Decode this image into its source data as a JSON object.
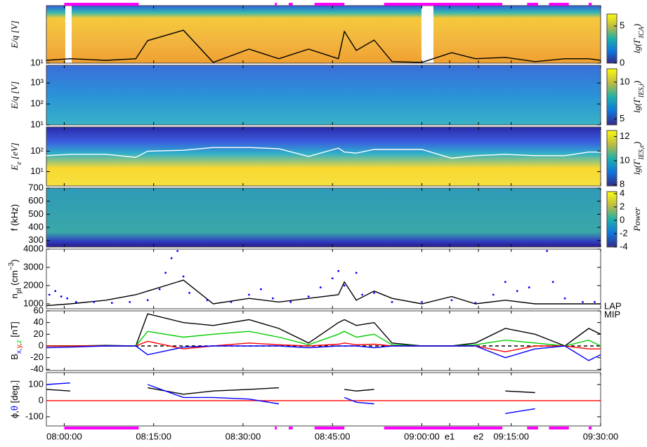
{
  "time_axis": {
    "xlim": [
      "07:57:00",
      "09:30:00"
    ],
    "xticks": [
      "08:00:00",
      "08:15:00",
      "08:30:00",
      "08:45:00",
      "09:00:00",
      {
        "value": "09:04:40",
        "label": "e1"
      },
      {
        "value": "09:09:30",
        "label": "e2"
      },
      "09:15:00",
      "09:30:00"
    ]
  },
  "intervals": [
    [
      "08:00:00",
      "08:12:30"
    ],
    [
      "08:35:20",
      "08:35:40"
    ],
    [
      "08:37:40",
      "08:38:20"
    ],
    [
      "08:42:00",
      "08:47:00"
    ],
    [
      "08:53:40",
      "09:13:30"
    ],
    [
      "09:17:40",
      "09:19:30"
    ],
    [
      "09:21:20",
      "09:24:40"
    ],
    [
      "09:28:00",
      "09:28:30"
    ]
  ],
  "chart_data": [
    {
      "type": "spectrogram",
      "ylabel": [
        {
          "text": "E/q [V]"
        }
      ],
      "label_font": "serif",
      "log": true,
      "ylim": [
        10,
        10000
      ],
      "yticks": [
        {
          "value": 10,
          "label": "10¹"
        }
      ],
      "colorbar": {
        "label": [
          {
            "text": "lg(Γ"
          },
          {
            "text": "ICA",
            "s": "sub"
          },
          {
            "text": ")"
          }
        ],
        "clim": [
          0,
          6.6
        ],
        "ticks": [
          0,
          5
        ],
        "colormap": "parula"
      },
      "x": [
        "07:57:00",
        "08:01:00",
        "08:07:00",
        "08:12:00",
        "08:14:00",
        "08:20:00",
        "08:25:00",
        "08:31:00",
        "08:36:00",
        "08:41:00",
        "08:46:00",
        "08:47:00",
        "08:49:00",
        "08:52:00",
        "08:55:00",
        "09:00:00",
        "09:05:00",
        "09:09:00",
        "09:14:00",
        "09:19:00",
        "09:24:00",
        "09:28:00",
        "09:30:00"
      ],
      "series": [
        {
          "color": "#000000",
          "values": [
            14,
            17,
            14,
            17,
            150,
            520,
            11,
            54,
            17,
            54,
            17,
            450,
            46,
            160,
            12,
            11,
            35,
            17,
            20,
            12,
            17,
            17,
            14
          ]
        }
      ]
    },
    {
      "type": "spectrogram",
      "ylabel": [
        {
          "text": "E/q [V]"
        }
      ],
      "label_font": "serif",
      "log": true,
      "ylim": [
        10,
        7000
      ],
      "yticks": [
        {
          "value": 10,
          "label": "10¹"
        },
        {
          "value": 100,
          "label": "10²"
        },
        {
          "value": 1000,
          "label": "10³"
        }
      ],
      "colorbar": {
        "label": [
          {
            "text": "lg(Γ"
          },
          {
            "text": "IES,i",
            "s": "sub"
          },
          {
            "text": ")"
          }
        ],
        "clim": [
          4.2,
          11.8
        ],
        "ticks": [
          5,
          10
        ],
        "colormap": "parula"
      }
    },
    {
      "type": "spectrogram",
      "ylabel": [
        {
          "text": "E"
        },
        {
          "text": "e",
          "s": "sub"
        },
        {
          "text": " [eV]"
        }
      ],
      "label_font": "serif",
      "log": true,
      "ylim": [
        2,
        1500
      ],
      "yticks": [
        {
          "value": 10,
          "label": "10¹"
        },
        {
          "value": 100,
          "label": "10²"
        }
      ],
      "colorbar": {
        "label": [
          {
            "text": "lg(Γ"
          },
          {
            "text": "IES,e",
            "s": "sub"
          },
          {
            "text": ")"
          }
        ],
        "clim": [
          7.9,
          12.5
        ],
        "ticks": [
          8,
          10,
          12
        ],
        "colormap": "parula"
      },
      "x": [
        "07:57:00",
        "08:01:00",
        "08:07:00",
        "08:12:00",
        "08:14:00",
        "08:20:00",
        "08:25:00",
        "08:31:00",
        "08:36:00",
        "08:41:00",
        "08:46:00",
        "08:47:00",
        "08:49:00",
        "08:52:00",
        "08:55:00",
        "09:00:00",
        "09:05:00",
        "09:09:00",
        "09:14:00",
        "09:19:00",
        "09:24:00",
        "09:28:00",
        "09:30:00"
      ],
      "series": [
        {
          "color": "#ffffff",
          "values": [
            60,
            70,
            70,
            50,
            100,
            110,
            150,
            150,
            130,
            55,
            140,
            90,
            80,
            120,
            120,
            120,
            45,
            60,
            70,
            60,
            60,
            90,
            90
          ]
        }
      ]
    },
    {
      "type": "spectrogram",
      "ylabel": [
        {
          "text": "f (kHz)"
        }
      ],
      "label_font": "sans",
      "log": false,
      "ylim": [
        250,
        700
      ],
      "yticks": [
        300,
        400,
        500,
        600,
        700
      ],
      "colorbar": {
        "label": [
          {
            "text": "Power"
          }
        ],
        "clim": [
          -4,
          4.3
        ],
        "ticks": [
          -4,
          -2,
          0,
          2,
          4
        ],
        "colormap": "parula"
      }
    },
    {
      "type": "line",
      "ylabel": [
        {
          "text": "n"
        },
        {
          "text": "pl",
          "s": "sub"
        },
        {
          "text": " (cm"
        },
        {
          "text": "−3",
          "s": "super"
        },
        {
          "text": ")"
        }
      ],
      "label_font": "sans",
      "log": false,
      "ylim": [
        730,
        4000
      ],
      "yticks": [
        1000,
        2000,
        3000,
        4000
      ],
      "legend": "right",
      "x": [
        "07:57:00",
        "08:01:00",
        "08:07:00",
        "08:12:00",
        "08:14:00",
        "08:20:00",
        "08:25:00",
        "08:31:00",
        "08:36:00",
        "08:41:00",
        "08:46:00",
        "08:47:00",
        "08:49:00",
        "08:52:00",
        "08:55:00",
        "09:00:00",
        "09:05:00",
        "09:09:00",
        "09:14:00",
        "09:19:00",
        "09:24:00",
        "09:28:00",
        "09:30:00"
      ],
      "series": [
        {
          "name": "LAP",
          "color": "#000000",
          "values": [
            900,
            1000,
            1200,
            1500,
            1700,
            2300,
            1000,
            1300,
            1100,
            1300,
            1500,
            2200,
            1200,
            1700,
            1300,
            1000,
            1400,
            1000,
            1200,
            1000,
            1000,
            1000,
            1000
          ]
        },
        {
          "name": "MIP",
          "color": "#0000ff",
          "mode": "markers",
          "x": [
            "07:57:30",
            "07:58:30",
            "07:59:30",
            "08:00:30",
            "08:02:00",
            "08:05:00",
            "08:08:00",
            "08:11:00",
            "08:14:00",
            "08:16:00",
            "08:17:00",
            "08:18:00",
            "08:19:00",
            "08:20:00",
            "08:21:00",
            "08:24:00",
            "08:28:00",
            "08:31:00",
            "08:33:00",
            "08:35:00",
            "08:38:00",
            "08:41:00",
            "08:43:00",
            "08:45:00",
            "08:46:00",
            "08:47:00",
            "08:49:00",
            "08:50:00",
            "08:52:00",
            "08:55:00",
            "09:00:00",
            "09:05:00",
            "09:09:00",
            "09:12:00",
            "09:14:00",
            "09:16:00",
            "09:18:00",
            "09:21:00",
            "09:22:00",
            "09:24:00",
            "09:27:00",
            "09:29:00"
          ],
          "values": [
            1500,
            1700,
            1400,
            1300,
            1100,
            1100,
            1050,
            1100,
            1200,
            1800,
            2700,
            3500,
            3900,
            2500,
            1600,
            1200,
            1100,
            1500,
            1800,
            1300,
            1100,
            1400,
            1900,
            2400,
            2800,
            2000,
            2700,
            1500,
            1600,
            1100,
            1100,
            1200,
            1050,
            1500,
            2200,
            1700,
            1900,
            3900,
            2200,
            1300,
            1100,
            1100
          ]
        }
      ]
    },
    {
      "type": "line",
      "ylabel": [
        {
          "text": "B"
        },
        {
          "text": "x",
          "s": "sub",
          "color": "#0000ff"
        },
        {
          "text": ",",
          "s": "sub"
        },
        {
          "text": "y",
          "s": "sub",
          "color": "#ff0000"
        },
        {
          "text": ",",
          "s": "sub"
        },
        {
          "text": "z",
          "s": "sub",
          "color": "#00cc00"
        },
        {
          "text": " [nT]"
        }
      ],
      "label_font": "sans",
      "log": false,
      "ylim": [
        -42,
        60
      ],
      "yticks": [
        -40,
        -20,
        0,
        20,
        40,
        60
      ],
      "zero_line": {
        "value": 0,
        "color": "#000000",
        "style": "dashed"
      },
      "x": [
        "07:57:00",
        "08:01:00",
        "08:07:00",
        "08:12:00",
        "08:14:00",
        "08:20:00",
        "08:25:00",
        "08:31:00",
        "08:36:00",
        "08:41:00",
        "08:46:00",
        "08:47:00",
        "08:49:00",
        "08:52:00",
        "08:55:00",
        "09:00:00",
        "09:05:00",
        "09:09:00",
        "09:14:00",
        "09:19:00",
        "09:24:00",
        "09:28:00",
        "09:30:00"
      ],
      "series": [
        {
          "color": "#000000",
          "values": [
            0,
            0,
            1,
            0,
            55,
            40,
            35,
            45,
            30,
            5,
            40,
            45,
            35,
            40,
            5,
            0,
            0,
            5,
            30,
            20,
            0,
            30,
            20
          ]
        },
        {
          "color": "#00cc00",
          "values": [
            0,
            0,
            0,
            0,
            25,
            15,
            20,
            25,
            15,
            2,
            20,
            25,
            15,
            20,
            2,
            0,
            0,
            2,
            10,
            5,
            0,
            10,
            0
          ]
        },
        {
          "color": "#ff0000",
          "values": [
            0,
            0,
            0,
            0,
            8,
            -5,
            0,
            5,
            2,
            0,
            3,
            5,
            2,
            3,
            0,
            0,
            0,
            0,
            -10,
            0,
            0,
            -5,
            -5
          ]
        },
        {
          "color": "#0000ff",
          "values": [
            -3,
            -2,
            0,
            0,
            -15,
            -2,
            0,
            0,
            0,
            -3,
            0,
            0,
            0,
            -3,
            0,
            0,
            0,
            0,
            -20,
            -5,
            0,
            -25,
            -15
          ]
        }
      ]
    },
    {
      "type": "line",
      "ylabel": [
        {
          "text": "ϕ"
        },
        {
          "text": ","
        },
        {
          "text": "θ",
          "color": "#0000ff"
        },
        {
          "text": " [deg.]"
        }
      ],
      "label_font": "sans",
      "log": false,
      "ylim": [
        -157,
        174
      ],
      "yticks": [
        -100,
        0,
        100
      ],
      "zero_line": {
        "value": 0,
        "color": "#ff0000",
        "style": "solid"
      },
      "x": [
        "07:57:00",
        "08:01:00",
        "08:07:00",
        "08:12:00",
        "08:14:00",
        "08:20:00",
        "08:25:00",
        "08:31:00",
        "08:36:00",
        "08:41:00",
        "08:46:00",
        "08:47:00",
        "08:49:00",
        "08:52:00",
        "08:55:00",
        "09:00:00",
        "09:05:00",
        "09:09:00",
        "09:14:00",
        "09:19:00",
        "09:24:00",
        "09:28:00",
        "09:30:00"
      ],
      "series": [
        {
          "color": "#000000",
          "values": [
            70,
            60,
            null,
            null,
            80,
            40,
            60,
            70,
            80,
            null,
            null,
            70,
            60,
            70,
            null,
            null,
            null,
            null,
            60,
            50,
            null,
            null,
            null
          ]
        },
        {
          "color": "#0000ff",
          "values": [
            100,
            110,
            null,
            null,
            100,
            20,
            20,
            10,
            -20,
            null,
            null,
            20,
            -10,
            -20,
            null,
            null,
            null,
            null,
            -80,
            -50,
            null,
            null,
            null
          ]
        }
      ]
    }
  ]
}
